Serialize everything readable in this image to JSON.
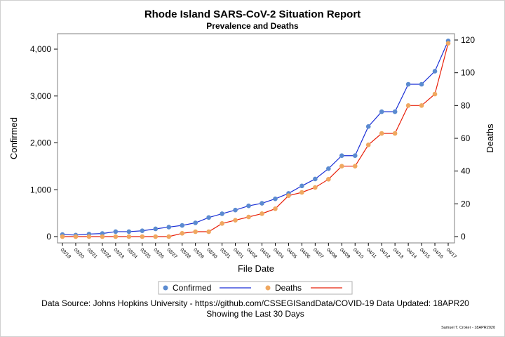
{
  "chart_data": {
    "type": "line",
    "title": "Rhode Island SARS-CoV-2 Situation Report",
    "subtitle": "Prevalence and Deaths",
    "xlabel": "File Date",
    "ylabel_left": "Confirmed",
    "ylabel_right": "Deaths",
    "categories": [
      "03/19",
      "03/20",
      "03/21",
      "03/22",
      "03/23",
      "03/24",
      "03/25",
      "03/26",
      "03/27",
      "03/28",
      "03/29",
      "03/30",
      "03/31",
      "04/01",
      "04/02",
      "04/03",
      "04/04",
      "04/05",
      "04/06",
      "04/07",
      "04/08",
      "04/09",
      "04/10",
      "04/11",
      "04/12",
      "04/13",
      "04/14",
      "04/15",
      "04/16",
      "04/17"
    ],
    "left_axis": {
      "min": 0,
      "max": 4200,
      "ticks": [
        0,
        1000,
        2000,
        3000,
        4000
      ],
      "tick_labels": [
        "0",
        "1,000",
        "2,000",
        "3,000",
        "4,000"
      ]
    },
    "right_axis": {
      "min": 0,
      "max": 120,
      "ticks": [
        0,
        20,
        40,
        60,
        80,
        100,
        120
      ],
      "tick_labels": [
        "0",
        "20",
        "40",
        "60",
        "80",
        "100",
        "120"
      ]
    },
    "series": [
      {
        "name": "Confirmed",
        "axis": "left",
        "marker_color": "#5b8bd0",
        "line_color": "#1a2fd6",
        "values": [
          44,
          33,
          54,
          66,
          106,
          106,
          124,
          165,
          203,
          239,
          294,
          408,
          488,
          566,
          657,
          711,
          806,
          922,
          1082,
          1229,
          1450,
          1727,
          1727,
          2349,
          2665,
          2665,
          3251,
          3251,
          3529,
          4177
        ]
      },
      {
        "name": "Deaths",
        "axis": "right",
        "marker_color": "#f0a860",
        "line_color": "#e8200a",
        "values": [
          0,
          0,
          0,
          0,
          0,
          0,
          0,
          0,
          0,
          2,
          3,
          3,
          8,
          10,
          12,
          14,
          17,
          25,
          27,
          30,
          35,
          43,
          43,
          56,
          63,
          63,
          80,
          80,
          87,
          118
        ]
      }
    ],
    "grid": false,
    "legend_position": "bottom"
  },
  "footnote": {
    "line1": "Data Source: Johns Hopkins University - https://github.com/CSSEGISandData/COVID-19 Data Updated: 18APR20",
    "line2": "Showing the Last 30 Days"
  },
  "credit": "Samuel T. Croker - 18APR2020"
}
